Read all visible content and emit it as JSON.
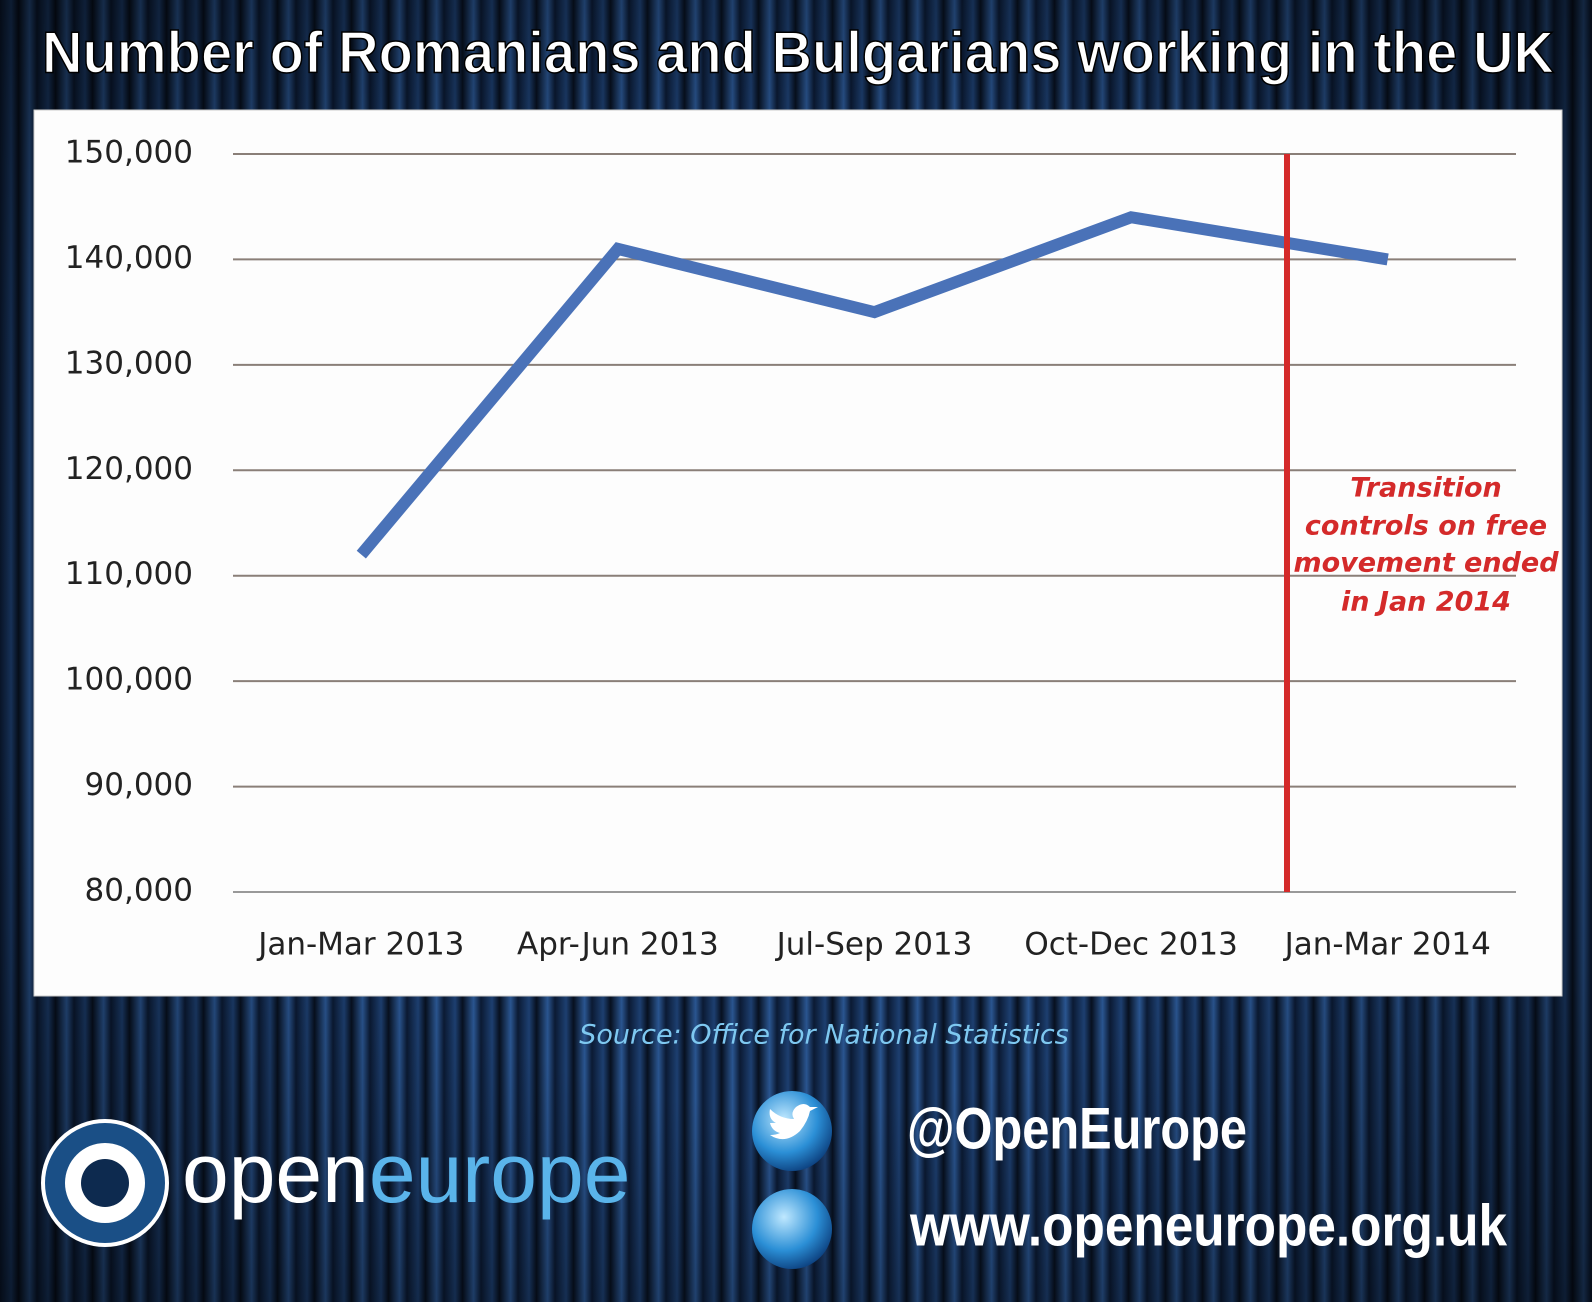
{
  "chart_data": {
    "type": "line",
    "title": "Number of Romanians and Bulgarians working in the UK",
    "categories": [
      "Jan-Mar 2013",
      "Apr-Jun 2013",
      "Jul-Sep 2013",
      "Oct-Dec 2013",
      "Jan-Mar 2014"
    ],
    "series": [
      {
        "color": "#4a72b8",
        "values": [
          112000,
          141000,
          135000,
          144000,
          140000
        ]
      }
    ],
    "ylim": [
      80000,
      150000
    ],
    "yticks": [
      {
        "value": 80000,
        "label": "80,000"
      },
      {
        "value": 90000,
        "label": "90,000"
      },
      {
        "value": 100000,
        "label": "100,000"
      },
      {
        "value": 110000,
        "label": "110,000"
      },
      {
        "value": 120000,
        "label": "120,000"
      },
      {
        "value": 130000,
        "label": "130,000"
      },
      {
        "value": 140000,
        "label": "140,000"
      },
      {
        "value": 150000,
        "label": "150,000"
      }
    ],
    "grid": true,
    "annotation": [
      "Transition",
      "controls on free",
      "movement ended",
      "in Jan 2014"
    ],
    "source": "Source: Office for National Statistics"
  },
  "footer": {
    "brand_open": "open",
    "brand_europe": "europe",
    "twitter": "@OpenEurope",
    "website": "www.openeurope.org.uk"
  }
}
